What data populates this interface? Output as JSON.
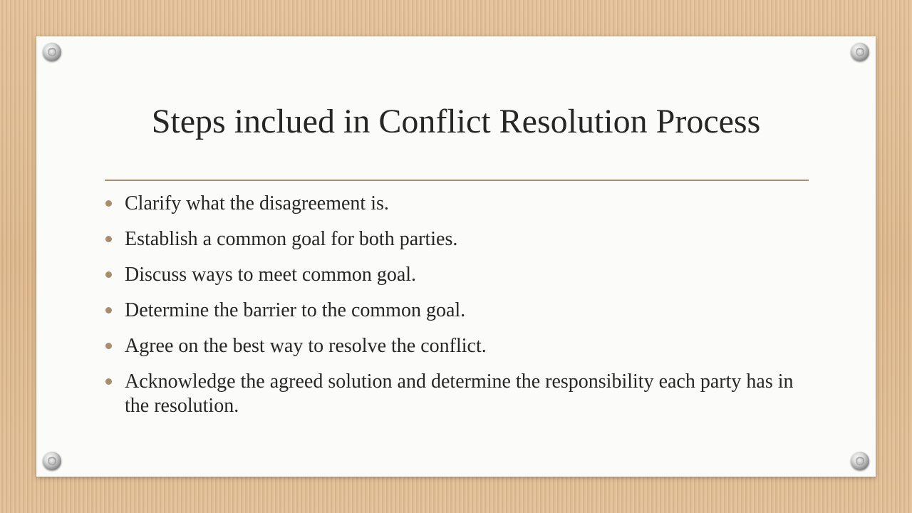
{
  "slide": {
    "title": "Steps inclued in Conflict Resolution Process",
    "bullets": [
      "Clarify what the disagreement is.",
      "Establish a common goal for both parties.",
      "Discuss ways to meet common goal.",
      "Determine the barrier to the common goal.",
      "Agree on the best way to resolve the conflict.",
      "Acknowledge the agreed solution and determine the responsibility each party has in the resolution."
    ]
  },
  "colors": {
    "background": "#e0bd93",
    "card": "#fbfbfa",
    "accent": "#a98c6e",
    "text": "#262626"
  },
  "icons": {
    "corners": [
      "rivet-icon",
      "rivet-icon",
      "rivet-icon",
      "rivet-icon"
    ]
  }
}
